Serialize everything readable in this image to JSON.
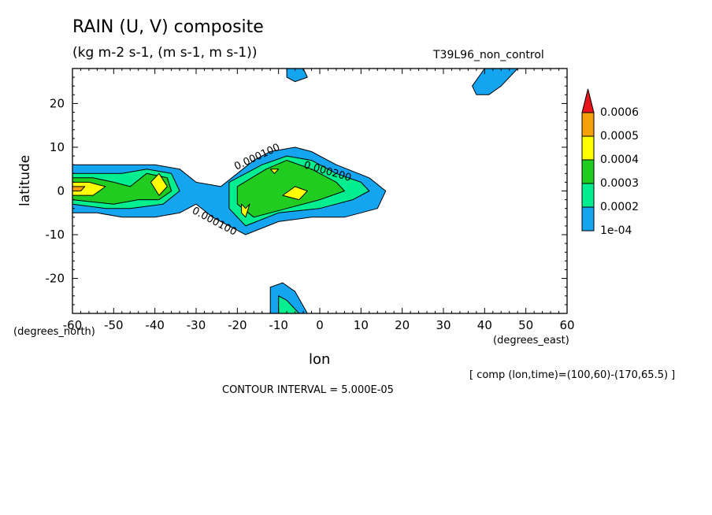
{
  "chart_data": {
    "type": "contour",
    "title": "RAIN (U, V) composite",
    "subtitle": "(kg m-2 s-1, (m s-1, m s-1))",
    "dataset": "T39L96_non_control",
    "xlabel": "lon",
    "ylabel": "latitude",
    "xunit": "(degrees_east)",
    "yunit": "(degrees_north)",
    "xlim": [
      -60,
      60
    ],
    "ylim": [
      -28,
      28
    ],
    "x_ticks": [
      "-60",
      "-50",
      "-40",
      "-30",
      "-20",
      "-10",
      "0",
      "10",
      "20",
      "30",
      "40",
      "50",
      "60"
    ],
    "y_ticks": [
      "20",
      "10",
      "0",
      "-10",
      "-20"
    ],
    "x_tick_values": [
      -60,
      -50,
      -40,
      -30,
      -20,
      -10,
      0,
      10,
      20,
      30,
      40,
      50,
      60
    ],
    "y_tick_values": [
      20,
      10,
      0,
      -10,
      -20
    ],
    "colorbar": {
      "labels": [
        "0.0006",
        "0.0005",
        "0.0004",
        "0.0003",
        "0.0002",
        "1e-04"
      ],
      "colors": [
        "#e8141c",
        "#f5a00a",
        "#ffff00",
        "#21cc21",
        "#00ee90",
        "#14a4f0"
      ]
    },
    "contour_labels": [
      "0.000100",
      "0.000200",
      "0.000100"
    ],
    "level_colors": {
      "0.0001": "#14a4f0",
      "0.0002": "#00ee90",
      "0.0003": "#21cc21",
      "0.0004": "#ffff00",
      "0.0005": "#f5a00a"
    },
    "regions": [
      {
        "level": 0.0001,
        "points": [
          [
            -60,
            6
          ],
          [
            -52,
            6
          ],
          [
            -46,
            6
          ],
          [
            -40,
            6
          ],
          [
            -34,
            5
          ],
          [
            -30,
            2
          ],
          [
            -24,
            1
          ],
          [
            -20,
            4
          ],
          [
            -16,
            7
          ],
          [
            -12,
            9
          ],
          [
            -6,
            10
          ],
          [
            -2,
            9
          ],
          [
            4,
            6
          ],
          [
            12,
            3
          ],
          [
            16,
            0
          ],
          [
            14,
            -4
          ],
          [
            6,
            -6
          ],
          [
            -2,
            -6
          ],
          [
            -10,
            -7
          ],
          [
            -18,
            -10
          ],
          [
            -26,
            -6
          ],
          [
            -30,
            -3
          ],
          [
            -34,
            -5
          ],
          [
            -40,
            -6
          ],
          [
            -48,
            -6
          ],
          [
            -54,
            -5
          ],
          [
            -60,
            -5
          ]
        ]
      },
      {
        "level": 0.0002,
        "points": [
          [
            -60,
            4
          ],
          [
            -54,
            4
          ],
          [
            -48,
            4
          ],
          [
            -42,
            5
          ],
          [
            -36,
            4
          ],
          [
            -34,
            0
          ],
          [
            -38,
            -3
          ],
          [
            -46,
            -4
          ],
          [
            -52,
            -4
          ],
          [
            -60,
            -3
          ]
        ]
      },
      {
        "level": 0.0002,
        "points": [
          [
            -22,
            2
          ],
          [
            -14,
            6
          ],
          [
            -8,
            8
          ],
          [
            -2,
            7
          ],
          [
            4,
            4
          ],
          [
            10,
            2
          ],
          [
            12,
            0
          ],
          [
            8,
            -2
          ],
          [
            0,
            -4
          ],
          [
            -10,
            -5
          ],
          [
            -18,
            -8
          ],
          [
            -22,
            -4
          ]
        ]
      },
      {
        "level": 0.0003,
        "points": [
          [
            -60,
            3
          ],
          [
            -55,
            3
          ],
          [
            -50,
            2
          ],
          [
            -46,
            1
          ],
          [
            -42,
            4
          ],
          [
            -37,
            3
          ],
          [
            -36,
            0
          ],
          [
            -39,
            -2
          ],
          [
            -44,
            -2
          ],
          [
            -50,
            -3
          ],
          [
            -60,
            -2
          ]
        ]
      },
      {
        "level": 0.0003,
        "points": [
          [
            -20,
            1
          ],
          [
            -13,
            5
          ],
          [
            -8,
            7
          ],
          [
            -2,
            5
          ],
          [
            4,
            2
          ],
          [
            6,
            0
          ],
          [
            0,
            -2
          ],
          [
            -8,
            -4
          ],
          [
            -16,
            -6
          ],
          [
            -20,
            -3
          ]
        ]
      },
      {
        "level": 0.0004,
        "points": [
          [
            -60,
            2
          ],
          [
            -56,
            2
          ],
          [
            -52,
            1
          ],
          [
            -55,
            -1
          ],
          [
            -60,
            -1
          ]
        ]
      },
      {
        "level": 0.0004,
        "points": [
          [
            -41,
            2
          ],
          [
            -39,
            4
          ],
          [
            -37,
            1
          ],
          [
            -39,
            -1
          ]
        ]
      },
      {
        "level": 0.0004,
        "points": [
          [
            -19,
            -3
          ],
          [
            -18,
            -4
          ],
          [
            -17,
            -3
          ],
          [
            -18,
            -6
          ],
          [
            -19,
            -5
          ]
        ]
      },
      {
        "level": 0.0004,
        "points": [
          [
            -9,
            -1
          ],
          [
            -6,
            1
          ],
          [
            -3,
            0
          ],
          [
            -5,
            -2
          ]
        ]
      },
      {
        "level": 0.0004,
        "points": [
          [
            -12,
            5
          ],
          [
            -10,
            5
          ],
          [
            -11,
            4
          ]
        ]
      },
      {
        "level": 0.0005,
        "points": [
          [
            -60,
            1
          ],
          [
            -57,
            1
          ],
          [
            -58,
            0
          ],
          [
            -60,
            0
          ]
        ]
      },
      {
        "level": 0.0001,
        "points": [
          [
            -8,
            28
          ],
          [
            -4,
            28
          ],
          [
            -3,
            26
          ],
          [
            -6,
            25
          ],
          [
            -8,
            26
          ]
        ]
      },
      {
        "level": 0.0001,
        "points": [
          [
            37,
            24
          ],
          [
            40,
            28
          ],
          [
            44,
            28
          ],
          [
            48,
            28
          ],
          [
            44,
            24
          ],
          [
            41,
            22
          ],
          [
            38,
            22
          ]
        ]
      },
      {
        "level": 0.0001,
        "points": [
          [
            -12,
            -22
          ],
          [
            -9,
            -21
          ],
          [
            -6,
            -23
          ],
          [
            -3,
            -28
          ],
          [
            -12,
            -28
          ]
        ]
      },
      {
        "level": 0.0002,
        "points": [
          [
            -10,
            -24
          ],
          [
            -8,
            -25
          ],
          [
            -5,
            -28
          ],
          [
            -10,
            -28
          ]
        ]
      }
    ]
  },
  "colorbar_labels": {
    "l0": "0.0006",
    "l1": "0.0005",
    "l2": "0.0004",
    "l3": "0.0003",
    "l4": "0.0002",
    "l5": "1e-04"
  },
  "annotations": {
    "comp_note": "[ comp (lon,time)=(100,60)-(170,65.5) ]",
    "contour_interval": "CONTOUR INTERVAL = 5.000E-05"
  }
}
